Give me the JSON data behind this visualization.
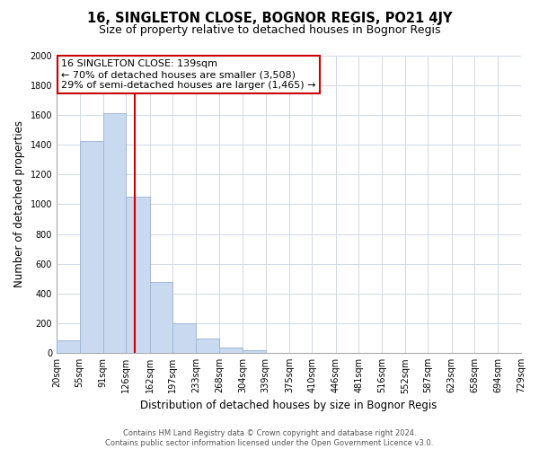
{
  "title": "16, SINGLETON CLOSE, BOGNOR REGIS, PO21 4JY",
  "subtitle": "Size of property relative to detached houses in Bognor Regis",
  "xlabel": "Distribution of detached houses by size in Bognor Regis",
  "ylabel": "Number of detached properties",
  "bar_edges": [
    20,
    55,
    91,
    126,
    162,
    197,
    233,
    268,
    304,
    339,
    375,
    410,
    446,
    481,
    516,
    552,
    587,
    623,
    658,
    694,
    729
  ],
  "bar_heights": [
    85,
    1425,
    1610,
    1050,
    480,
    200,
    100,
    40,
    20,
    0,
    0,
    0,
    0,
    0,
    0,
    0,
    0,
    0,
    0,
    0
  ],
  "bar_color": "#c8d9f0",
  "bar_edge_color": "#a0b8d8",
  "property_line_x": 139,
  "property_line_color": "#cc0000",
  "annotation_text": "16 SINGLETON CLOSE: 139sqm\n← 70% of detached houses are smaller (3,508)\n29% of semi-detached houses are larger (1,465) →",
  "annotation_box_color": "#ffffff",
  "annotation_box_edge_color": "#cc0000",
  "ylim": [
    0,
    2000
  ],
  "yticks": [
    0,
    200,
    400,
    600,
    800,
    1000,
    1200,
    1400,
    1600,
    1800,
    2000
  ],
  "xtick_labels": [
    "20sqm",
    "55sqm",
    "91sqm",
    "126sqm",
    "162sqm",
    "197sqm",
    "233sqm",
    "268sqm",
    "304sqm",
    "339sqm",
    "375sqm",
    "410sqm",
    "446sqm",
    "481sqm",
    "516sqm",
    "552sqm",
    "587sqm",
    "623sqm",
    "658sqm",
    "694sqm",
    "729sqm"
  ],
  "footer_text": "Contains HM Land Registry data © Crown copyright and database right 2024.\nContains public sector information licensed under the Open Government Licence v3.0.",
  "background_color": "#ffffff",
  "grid_color": "#d0d8e4",
  "title_fontsize": 10.5,
  "subtitle_fontsize": 9,
  "axis_label_fontsize": 8.5,
  "tick_fontsize": 7,
  "annotation_fontsize": 8,
  "footer_fontsize": 6
}
